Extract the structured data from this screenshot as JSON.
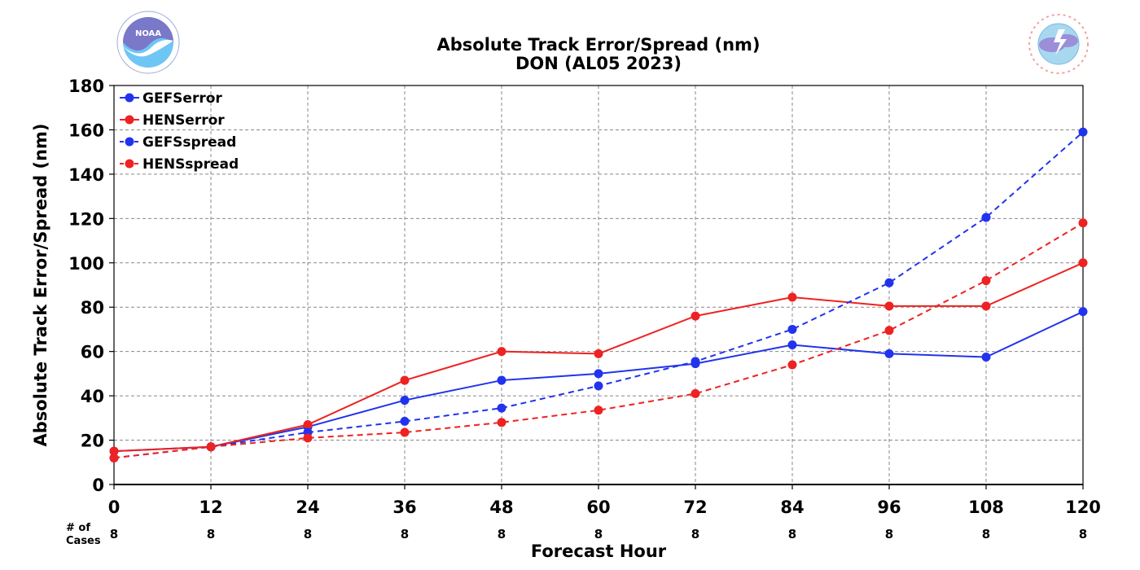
{
  "header": {
    "title_line1": "Absolute Track Error/Spread (nm)",
    "title_line2": "DON (AL05 2023)"
  },
  "logos": {
    "left": {
      "text": "NOAA",
      "icon": "noaa-logo-icon",
      "ring_text": "NATIONAL OCEANIC AND ATMOSPHERIC ADMINISTRATION · U.S. DEPARTMENT OF COMMERCE"
    },
    "right": {
      "icon": "nws-logo-icon",
      "ring_text": "NATIONAL WEATHER SERVICE"
    }
  },
  "cases": {
    "label_line1": "# of",
    "label_line2": "Cases",
    "values": [
      8,
      8,
      8,
      8,
      8,
      8,
      8,
      8,
      8,
      8,
      8
    ]
  },
  "chart_data": {
    "type": "line",
    "title": "Absolute Track Error/Spread (nm)\nDON (AL05 2023)",
    "xlabel": "Forecast Hour",
    "ylabel": "Absolute Track Error/Spread (nm)",
    "x": [
      0,
      12,
      24,
      36,
      48,
      60,
      72,
      84,
      96,
      108,
      120
    ],
    "xlim": [
      0,
      120
    ],
    "ylim": [
      0,
      180
    ],
    "yticks": [
      0,
      20,
      40,
      60,
      80,
      100,
      120,
      140,
      160,
      180
    ],
    "grid": true,
    "legend_position": "top-left",
    "series": [
      {
        "name": "GEFSerror",
        "color": "#2233ee",
        "style": "solid",
        "values": [
          15,
          17,
          26,
          38,
          47,
          50,
          54.5,
          63,
          59,
          57.5,
          78
        ]
      },
      {
        "name": "HENSerror",
        "color": "#ee2222",
        "style": "solid",
        "values": [
          15,
          17,
          27,
          47,
          60,
          59,
          76,
          84.5,
          80.5,
          80.5,
          100
        ]
      },
      {
        "name": "GEFSspread",
        "color": "#2233ee",
        "style": "dashed",
        "values": [
          12,
          17,
          23.5,
          28.5,
          34.5,
          44.5,
          55.5,
          70,
          91,
          120.5,
          159
        ]
      },
      {
        "name": "HENSspread",
        "color": "#ee2222",
        "style": "dashed",
        "values": [
          12,
          17,
          21,
          23.5,
          28,
          33.5,
          41,
          54,
          69.5,
          92,
          118
        ]
      }
    ]
  }
}
